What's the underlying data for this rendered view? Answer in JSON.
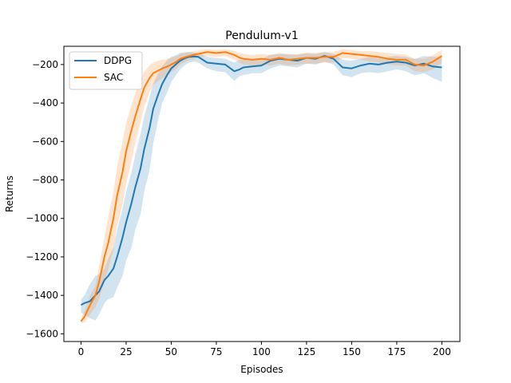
{
  "chart_data": {
    "type": "line",
    "title": "Pendulum-v1",
    "xlabel": "Episodes",
    "ylabel": "Returns",
    "xlim": [
      -9.5,
      210
    ],
    "ylim": [
      -1640,
      -105
    ],
    "xticks": [
      0,
      25,
      50,
      75,
      100,
      125,
      150,
      175,
      200
    ],
    "xtick_labels": [
      "0",
      "25",
      "50",
      "75",
      "100",
      "125",
      "150",
      "175",
      "200"
    ],
    "yticks": [
      -1600,
      -1400,
      -1200,
      -1000,
      -800,
      -600,
      -400,
      -200
    ],
    "ytick_labels": [
      "−1600",
      "−1400",
      "−1200",
      "−1000",
      "−800",
      "−600",
      "−400",
      "−200"
    ],
    "legend_position": "top-left",
    "series": [
      {
        "name": "DDPG",
        "color": "#1f77b4",
        "band_opacity": 0.2,
        "x": [
          0,
          2,
          5,
          8,
          10,
          13,
          15,
          18,
          20,
          23,
          25,
          28,
          30,
          33,
          35,
          38,
          40,
          43,
          45,
          48,
          50,
          53,
          55,
          58,
          60,
          63,
          65,
          70,
          75,
          80,
          85,
          88,
          90,
          95,
          100,
          105,
          110,
          115,
          120,
          125,
          130,
          135,
          140,
          145,
          150,
          155,
          160,
          165,
          170,
          175,
          180,
          185,
          190,
          195,
          200
        ],
        "mean": [
          -1450,
          -1440,
          -1430,
          -1400,
          -1380,
          -1320,
          -1300,
          -1260,
          -1200,
          -1100,
          -1020,
          -920,
          -840,
          -740,
          -640,
          -530,
          -430,
          -350,
          -300,
          -250,
          -220,
          -195,
          -180,
          -165,
          -160,
          -158,
          -160,
          -190,
          -195,
          -200,
          -235,
          -225,
          -215,
          -210,
          -205,
          -180,
          -170,
          -175,
          -180,
          -165,
          -170,
          -155,
          -170,
          -215,
          -220,
          -205,
          -195,
          -200,
          -190,
          -185,
          -190,
          -205,
          -195,
          -210,
          -215
        ],
        "upper": [
          -1420,
          -1400,
          -1340,
          -1300,
          -1290,
          -1260,
          -1210,
          -1150,
          -1060,
          -950,
          -860,
          -760,
          -670,
          -560,
          -470,
          -370,
          -300,
          -240,
          -210,
          -175,
          -160,
          -150,
          -140,
          -135,
          -135,
          -138,
          -140,
          -160,
          -165,
          -170,
          -190,
          -175,
          -175,
          -170,
          -170,
          -150,
          -145,
          -145,
          -150,
          -140,
          -145,
          -135,
          -145,
          -175,
          -180,
          -170,
          -160,
          -165,
          -160,
          -155,
          -160,
          -170,
          -155,
          -160,
          -160
        ],
        "lower": [
          -1490,
          -1500,
          -1520,
          -1530,
          -1500,
          -1440,
          -1420,
          -1410,
          -1360,
          -1300,
          -1220,
          -1150,
          -1060,
          -980,
          -860,
          -750,
          -610,
          -480,
          -400,
          -340,
          -290,
          -250,
          -225,
          -200,
          -190,
          -185,
          -190,
          -220,
          -235,
          -240,
          -285,
          -260,
          -255,
          -245,
          -245,
          -220,
          -205,
          -210,
          -215,
          -195,
          -200,
          -185,
          -200,
          -255,
          -265,
          -245,
          -240,
          -245,
          -235,
          -225,
          -235,
          -255,
          -245,
          -270,
          -290
        ]
      },
      {
        "name": "SAC",
        "color": "#ff7f0e",
        "band_opacity": 0.2,
        "x": [
          0,
          2,
          5,
          8,
          10,
          13,
          15,
          18,
          20,
          23,
          25,
          28,
          30,
          33,
          35,
          38,
          40,
          43,
          45,
          48,
          50,
          53,
          55,
          58,
          60,
          63,
          65,
          70,
          75,
          80,
          85,
          88,
          90,
          95,
          100,
          105,
          110,
          115,
          120,
          125,
          130,
          135,
          140,
          145,
          150,
          155,
          160,
          165,
          170,
          175,
          180,
          185,
          190,
          195,
          200
        ],
        "mean": [
          -1535,
          -1510,
          -1450,
          -1400,
          -1330,
          -1200,
          -1130,
          -1000,
          -880,
          -760,
          -650,
          -540,
          -470,
          -380,
          -320,
          -270,
          -245,
          -230,
          -220,
          -210,
          -200,
          -185,
          -170,
          -160,
          -155,
          -148,
          -145,
          -135,
          -140,
          -135,
          -150,
          -165,
          -170,
          -175,
          -170,
          -175,
          -165,
          -175,
          -170,
          -165,
          -165,
          -160,
          -160,
          -140,
          -145,
          -150,
          -155,
          -160,
          -170,
          -175,
          -175,
          -200,
          -205,
          -185,
          -155
        ],
        "upper": [
          -1520,
          -1480,
          -1400,
          -1350,
          -1250,
          -1100,
          -1000,
          -860,
          -730,
          -600,
          -500,
          -410,
          -350,
          -280,
          -240,
          -205,
          -190,
          -180,
          -175,
          -170,
          -165,
          -155,
          -145,
          -138,
          -135,
          -130,
          -128,
          -120,
          -125,
          -120,
          -130,
          -140,
          -145,
          -150,
          -145,
          -150,
          -140,
          -150,
          -145,
          -140,
          -140,
          -135,
          -135,
          -120,
          -125,
          -130,
          -130,
          -135,
          -140,
          -145,
          -148,
          -170,
          -170,
          -150,
          -125
        ],
        "lower": [
          -1545,
          -1540,
          -1500,
          -1460,
          -1420,
          -1330,
          -1270,
          -1160,
          -1040,
          -930,
          -820,
          -700,
          -610,
          -500,
          -420,
          -345,
          -305,
          -285,
          -270,
          -255,
          -240,
          -220,
          -200,
          -185,
          -178,
          -170,
          -165,
          -155,
          -160,
          -155,
          -175,
          -190,
          -200,
          -205,
          -200,
          -205,
          -195,
          -205,
          -200,
          -195,
          -195,
          -190,
          -190,
          -165,
          -170,
          -175,
          -185,
          -190,
          -200,
          -205,
          -205,
          -235,
          -240,
          -225,
          -190
        ]
      }
    ]
  }
}
